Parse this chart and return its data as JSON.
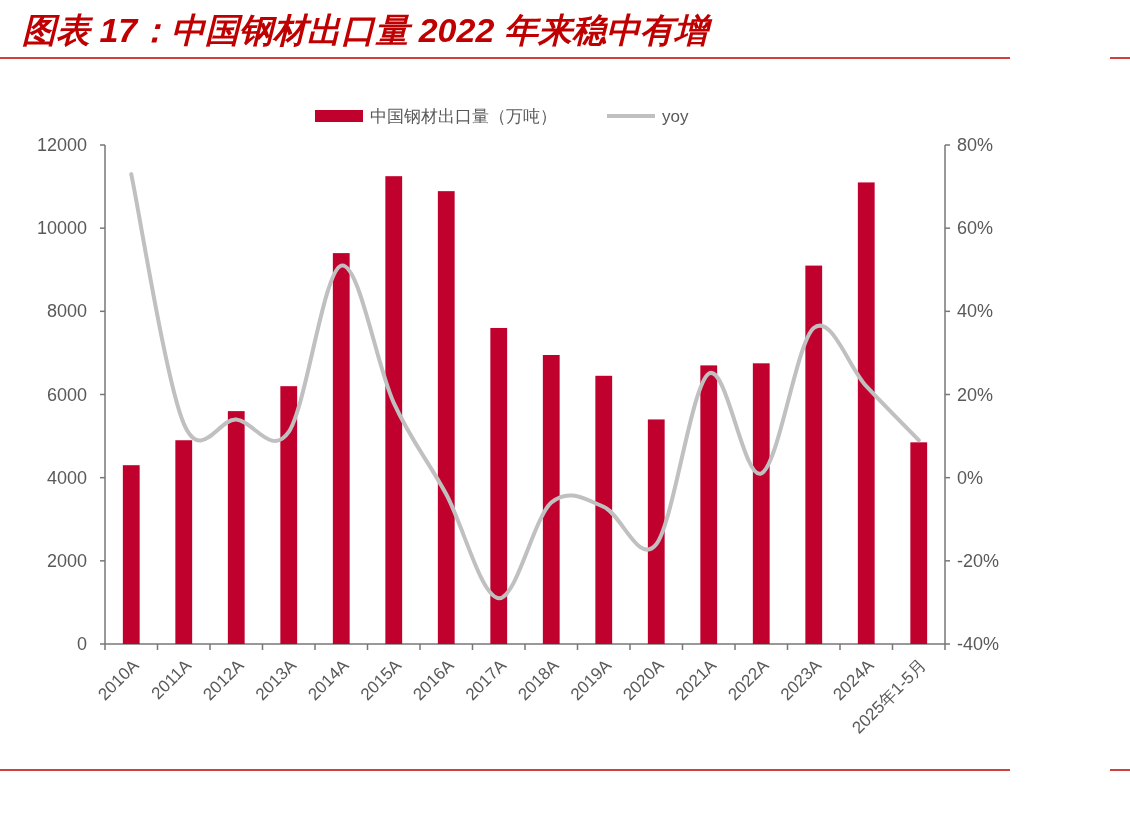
{
  "chart_data": {
    "type": "bar",
    "title": "图表 17：中国钢材出口量 2022 年来稳中有增",
    "categories": [
      "2010A",
      "2011A",
      "2012A",
      "2013A",
      "2014A",
      "2015A",
      "2016A",
      "2017A",
      "2018A",
      "2019A",
      "2020A",
      "2021A",
      "2022A",
      "2023A",
      "2024A",
      "2025年1-5月"
    ],
    "series": [
      {
        "name": "中国钢材出口量（万吨）",
        "color": "#c0002d",
        "values": [
          4300,
          4900,
          5600,
          6200,
          9400,
          11250,
          10890,
          7600,
          6950,
          6450,
          5400,
          6700,
          6750,
          9100,
          11100,
          4850
        ]
      },
      {
        "name": "yoy",
        "type": "line",
        "axis": "y2",
        "color": "#c0c0c0",
        "values": [
          73,
          13,
          14,
          11,
          51,
          18,
          -4,
          -29,
          -6,
          -7,
          -16,
          25,
          1,
          36,
          22,
          9
        ]
      }
    ],
    "ylim": [
      0,
      12000
    ],
    "yticks": [
      0,
      2000,
      4000,
      6000,
      8000,
      10000,
      12000
    ],
    "y2lim": [
      -40,
      80
    ],
    "y2ticks": [
      {
        "value": -40,
        "label": "-40%"
      },
      {
        "value": -20,
        "label": "-20%"
      },
      {
        "value": 0,
        "label": "0%"
      },
      {
        "value": 20,
        "label": "20%"
      },
      {
        "value": 40,
        "label": "40%"
      },
      {
        "value": 60,
        "label": "60%"
      },
      {
        "value": 80,
        "label": "80%"
      }
    ],
    "legend": "top"
  }
}
